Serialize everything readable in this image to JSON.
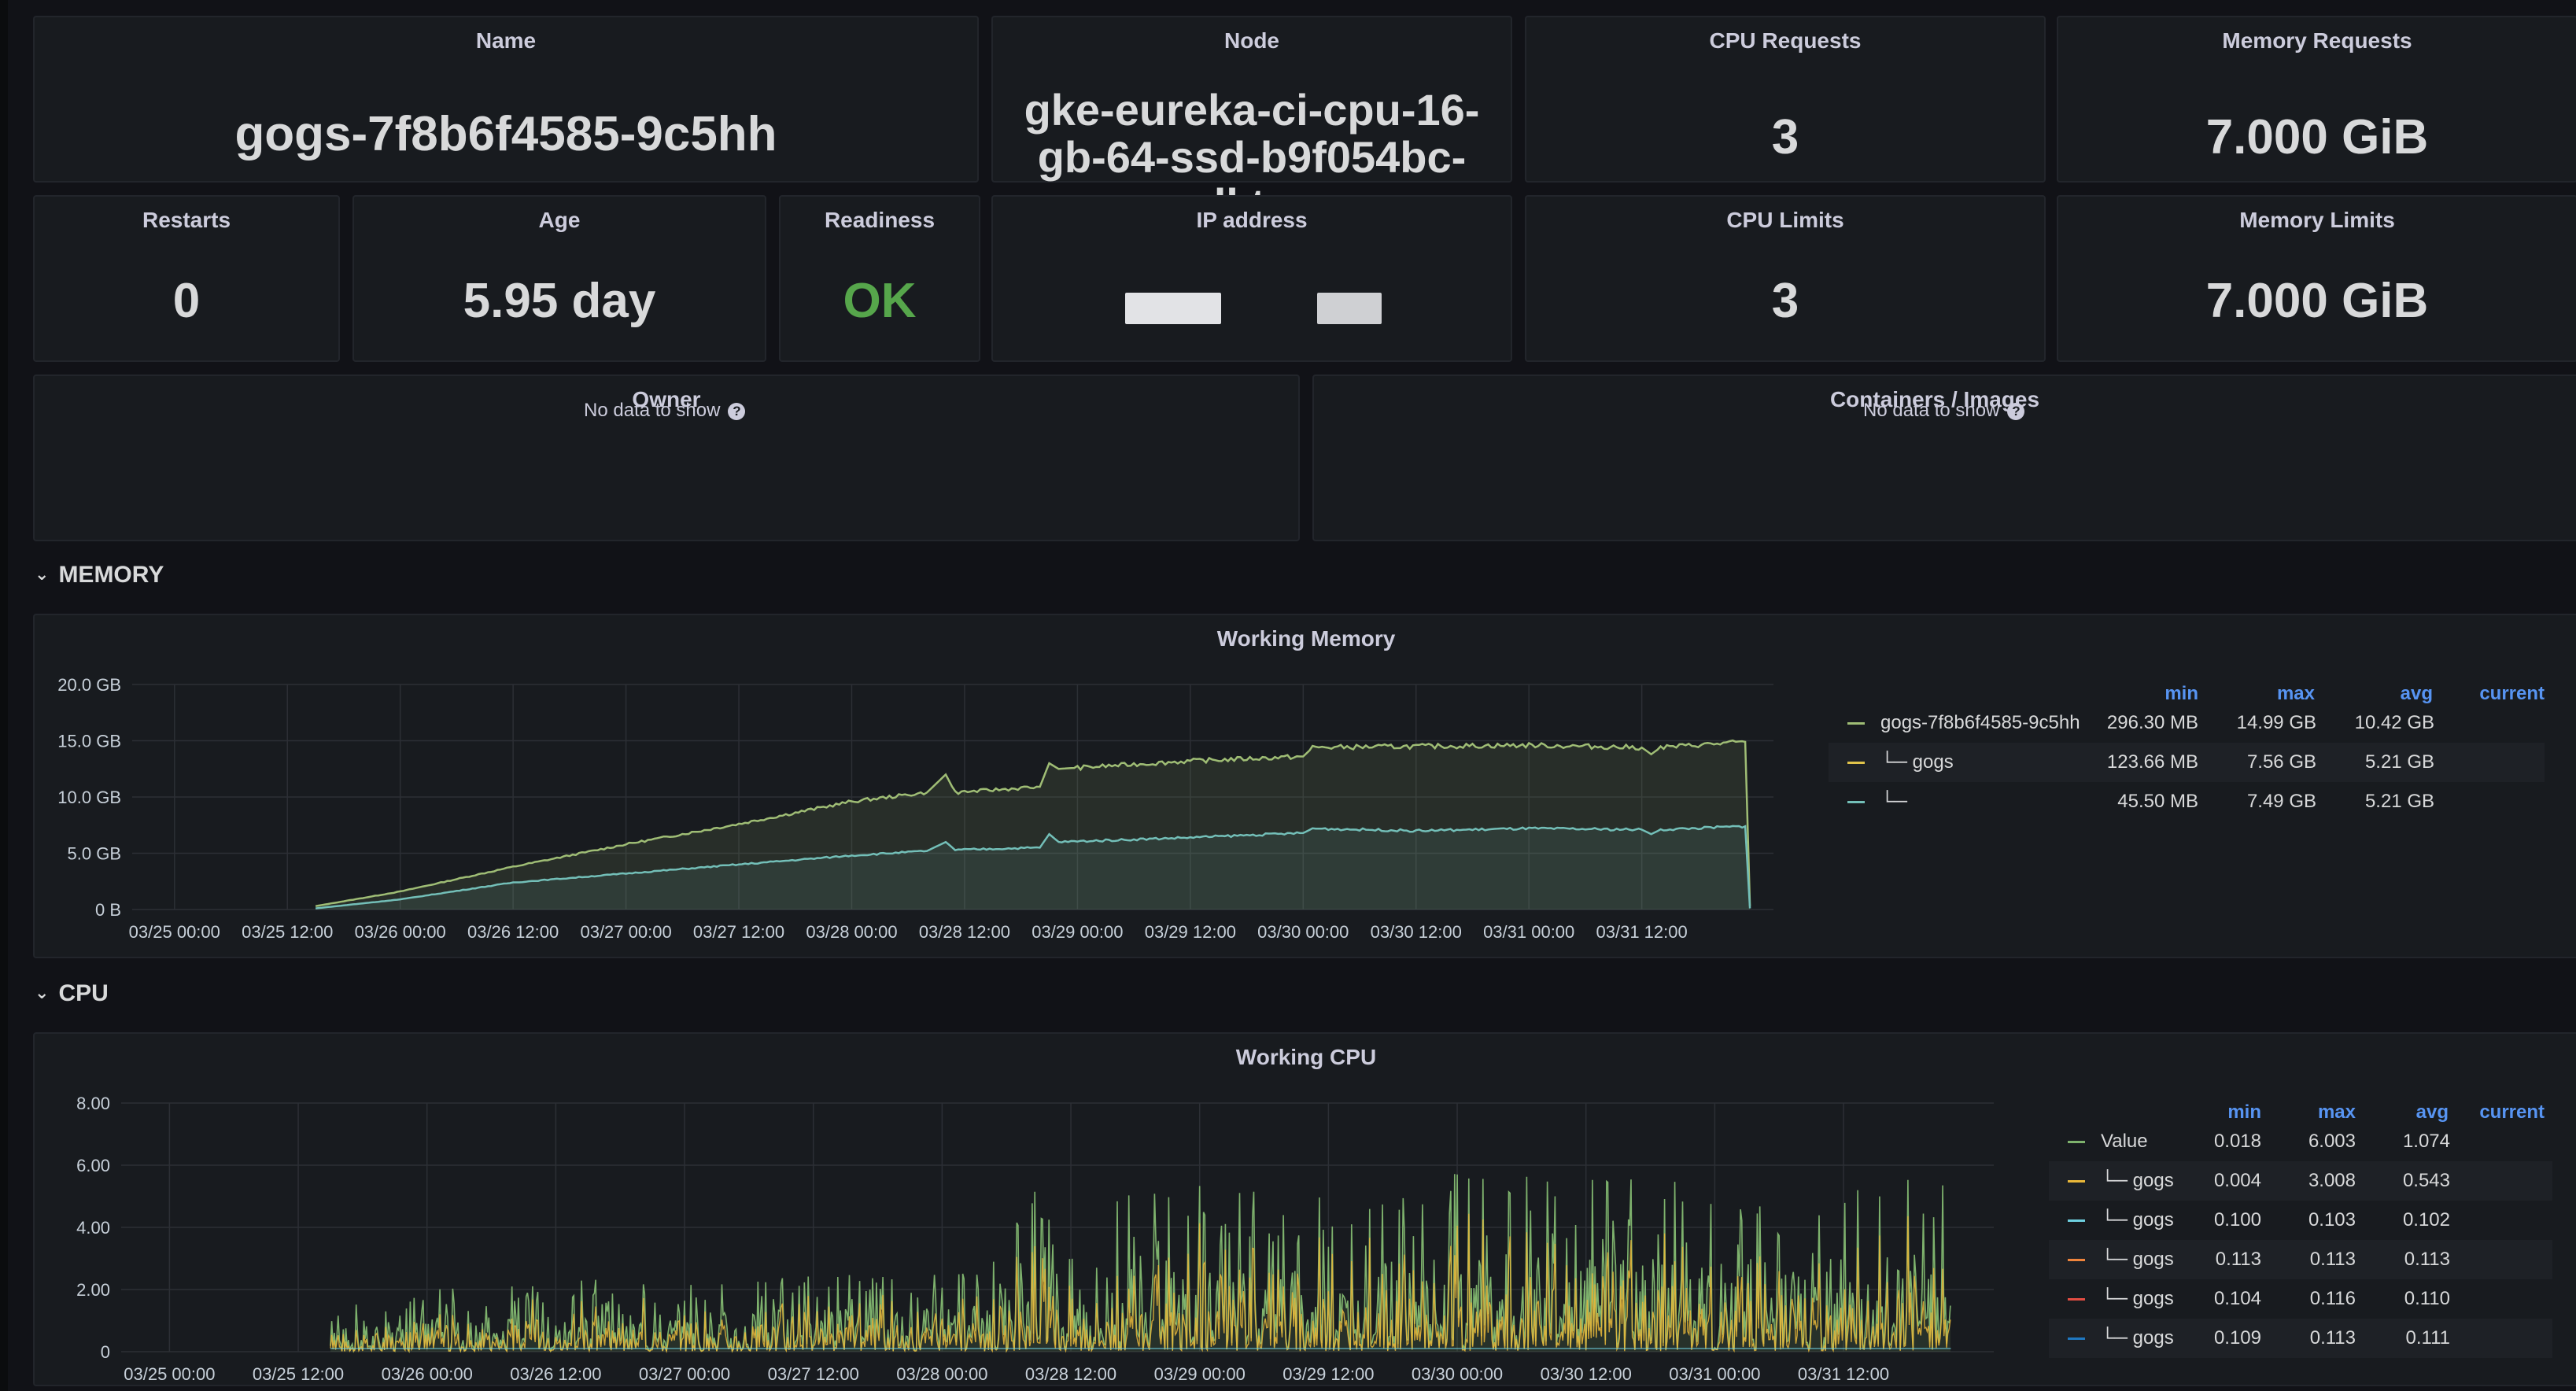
{
  "stats": {
    "name": {
      "title": "Name",
      "value": "gogs-7f8b6f4585-9c5hh"
    },
    "node": {
      "title": "Node",
      "value_lines": [
        "gke-eureka-ci-cpu-16-",
        "gb-64-ssd-b9f054bc-",
        "dktm"
      ]
    },
    "cpu_requests": {
      "title": "CPU Requests",
      "value": "3"
    },
    "memory_requests": {
      "title": "Memory Requests",
      "value": "7.000 GiB"
    },
    "restarts": {
      "title": "Restarts",
      "value": "0"
    },
    "age": {
      "title": "Age",
      "value": "5.95 day"
    },
    "readiness": {
      "title": "Readiness",
      "value": "OK",
      "color": "#56a64b"
    },
    "ip_address": {
      "title": "IP address"
    },
    "cpu_limits": {
      "title": "CPU Limits",
      "value": "3"
    },
    "memory_limits": {
      "title": "Memory Limits",
      "value": "7.000 GiB"
    }
  },
  "owner_panel": {
    "title": "Owner",
    "message": "No data to show"
  },
  "containers_panel": {
    "title": "Containers / Images",
    "message": "No data to show"
  },
  "rows": {
    "memory": "MEMORY",
    "cpu": "CPU"
  },
  "legend_headers": {
    "min": "min",
    "max": "max",
    "avg": "avg",
    "current": "current"
  },
  "memory_legend": [
    {
      "name": "gogs-7f8b6f4585-9c5hh",
      "color": "#9fbd75",
      "min": "296.30 MB",
      "max": "14.99 GB",
      "avg": "10.42 GB"
    },
    {
      "name": "└─ gogs",
      "color": "#e0c34a",
      "min": "123.66 MB",
      "max": "7.56 GB",
      "avg": "5.21 GB"
    },
    {
      "name": "└─",
      "color": "#73bfb8",
      "min": "45.50 MB",
      "max": "7.49 GB",
      "avg": "5.21 GB"
    }
  ],
  "cpu_legend": [
    {
      "name": "Value",
      "color": "#7eb26d",
      "min": "0.018",
      "max": "6.003",
      "avg": "1.074"
    },
    {
      "name": "└─ gogs",
      "color": "#eab839",
      "min": "0.004",
      "max": "3.008",
      "avg": "0.543"
    },
    {
      "name": "└─ gogs",
      "color": "#6ed0e0",
      "min": "0.100",
      "max": "0.103",
      "avg": "0.102"
    },
    {
      "name": "└─ gogs",
      "color": "#ef843c",
      "min": "0.113",
      "max": "0.113",
      "avg": "0.113"
    },
    {
      "name": "└─ gogs",
      "color": "#e24d42",
      "min": "0.104",
      "max": "0.116",
      "avg": "0.110"
    },
    {
      "name": "└─ gogs",
      "color": "#1f78c1",
      "min": "0.109",
      "max": "0.113",
      "avg": "0.111"
    }
  ],
  "chart_data": [
    {
      "type": "area",
      "title": "Working Memory",
      "x_ticks": [
        "03/25 00:00",
        "03/25 12:00",
        "03/26 00:00",
        "03/26 12:00",
        "03/27 00:00",
        "03/27 12:00",
        "03/28 00:00",
        "03/28 12:00",
        "03/29 00:00",
        "03/29 12:00",
        "03/30 00:00",
        "03/30 12:00",
        "03/31 00:00",
        "03/31 12:00"
      ],
      "y_ticks": [
        "0 B",
        "5.0 GB",
        "10.0 GB",
        "15.0 GB",
        "20.0 GB"
      ],
      "ylim_gb": [
        0,
        20
      ],
      "xlim_hours": [
        -4.5,
        170
      ],
      "series": [
        {
          "name": "gogs-7f8b6f4585-9c5hh",
          "color": "#9fbd75",
          "points_hours_gb": [
            [
              15,
              0.3
            ],
            [
              24,
              1.6
            ],
            [
              36,
              3.8
            ],
            [
              48,
              5.8
            ],
            [
              60,
              7.6
            ],
            [
              72,
              9.6
            ],
            [
              80,
              10.4
            ],
            [
              82,
              12.0
            ],
            [
              83,
              10.4
            ],
            [
              92,
              10.9
            ],
            [
              93,
              13.0
            ],
            [
              94,
              12.5
            ],
            [
              96,
              12.6
            ],
            [
              108,
              13.2
            ],
            [
              120,
              13.6
            ],
            [
              121,
              14.4
            ],
            [
              132,
              14.5
            ],
            [
              144,
              14.6
            ],
            [
              156,
              14.4
            ],
            [
              157,
              13.8
            ],
            [
              158,
              14.4
            ],
            [
              167,
              14.9
            ],
            [
              167.5,
              0.3
            ]
          ]
        },
        {
          "name": "└─",
          "color": "#73bfb8",
          "points_hours_gb": [
            [
              15,
              0.1
            ],
            [
              24,
              0.9
            ],
            [
              36,
              2.4
            ],
            [
              48,
              3.2
            ],
            [
              60,
              4.0
            ],
            [
              72,
              4.8
            ],
            [
              80,
              5.2
            ],
            [
              82,
              6.0
            ],
            [
              83,
              5.3
            ],
            [
              92,
              5.5
            ],
            [
              93,
              6.7
            ],
            [
              94,
              6.0
            ],
            [
              108,
              6.4
            ],
            [
              120,
              6.8
            ],
            [
              121,
              7.2
            ],
            [
              132,
              7.0
            ],
            [
              144,
              7.2
            ],
            [
              156,
              7.1
            ],
            [
              157,
              6.7
            ],
            [
              158,
              7.1
            ],
            [
              167,
              7.4
            ],
            [
              167.5,
              0.1
            ]
          ]
        }
      ]
    },
    {
      "type": "line",
      "title": "Working CPU",
      "x_ticks": [
        "03/25 00:00",
        "03/25 12:00",
        "03/26 00:00",
        "03/26 12:00",
        "03/27 00:00",
        "03/27 12:00",
        "03/28 00:00",
        "03/28 12:00",
        "03/29 00:00",
        "03/29 12:00",
        "03/30 00:00",
        "03/30 12:00",
        "03/31 00:00",
        "03/31 12:00"
      ],
      "y_ticks": [
        "0",
        "2.00",
        "4.00",
        "6.00",
        "8.00"
      ],
      "ylim": [
        0,
        8
      ],
      "xlim_hours": [
        -4.5,
        170
      ],
      "series": [
        {
          "name": "Value",
          "color": "#7eb26d",
          "min": 0.018,
          "max": 6.003,
          "avg": 1.074
        },
        {
          "name": "└─ gogs",
          "color": "#eab839",
          "min": 0.004,
          "max": 3.008,
          "avg": 0.543
        }
      ],
      "envelope_hours_peak": [
        [
          15,
          1.4
        ],
        [
          24,
          2.0
        ],
        [
          36,
          2.3
        ],
        [
          48,
          2.4
        ],
        [
          60,
          2.5
        ],
        [
          72,
          2.6
        ],
        [
          78,
          3.0
        ],
        [
          80,
          5.5
        ],
        [
          92,
          5.7
        ],
        [
          108,
          5.0
        ],
        [
          120,
          5.8
        ],
        [
          132,
          5.6
        ],
        [
          144,
          5.7
        ],
        [
          156,
          5.8
        ],
        [
          166,
          5.9
        ]
      ]
    }
  ]
}
